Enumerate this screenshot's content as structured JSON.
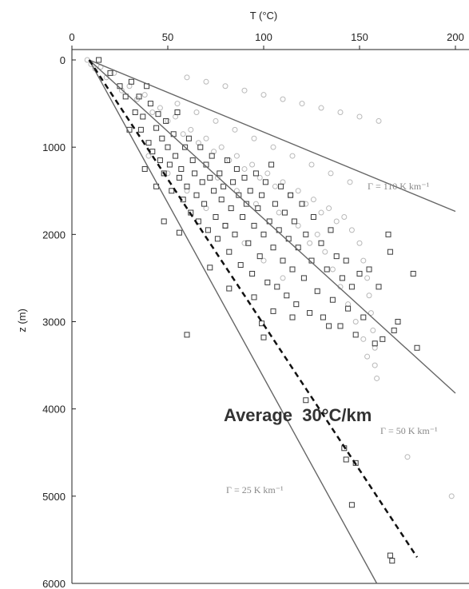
{
  "chart_data": {
    "type": "scatter",
    "title": "",
    "xlabel": "T (°C)",
    "ylabel": "z (m)",
    "x_axis_position": "top",
    "y_axis_inverted": true,
    "xlim": [
      0,
      200
    ],
    "ylim": [
      0,
      6000
    ],
    "xticks": [
      "0",
      "50",
      "100",
      "150",
      "200"
    ],
    "yticks": [
      "0",
      "1000",
      "2000",
      "3000",
      "4000",
      "5000",
      "6000"
    ],
    "grid": false,
    "legend": "none",
    "colors": {
      "line": "#666666",
      "circle": "#b8b8b8",
      "square": "#3a3a3a",
      "dashed": "#111111"
    },
    "reference_lines": [
      {
        "label": "Γ = 110 K km⁻¹",
        "x": [
          9,
          200
        ],
        "y": [
          0,
          1736
        ]
      },
      {
        "label": "Γ = 50 K km⁻¹",
        "x": [
          9,
          200
        ],
        "y": [
          0,
          3820
        ]
      },
      {
        "label": "Γ = 25 K km⁻¹",
        "x": [
          9,
          159
        ],
        "y": [
          0,
          6000
        ]
      }
    ],
    "average_line": {
      "label": "Average  30°C/km",
      "x": [
        9,
        180
      ],
      "y": [
        0,
        5700
      ],
      "style": "dashed"
    },
    "series": [
      {
        "marker": "square",
        "values": [
          [
            14,
            0
          ],
          [
            20,
            150
          ],
          [
            25,
            300
          ],
          [
            28,
            420
          ],
          [
            31,
            250
          ],
          [
            33,
            600
          ],
          [
            35,
            420
          ],
          [
            36,
            800
          ],
          [
            37,
            650
          ],
          [
            39,
            300
          ],
          [
            40,
            950
          ],
          [
            41,
            500
          ],
          [
            42,
            1050
          ],
          [
            44,
            780
          ],
          [
            45,
            620
          ],
          [
            46,
            1150
          ],
          [
            47,
            900
          ],
          [
            48,
            1300
          ],
          [
            49,
            700
          ],
          [
            50,
            1000
          ],
          [
            51,
            1200
          ],
          [
            52,
            1500
          ],
          [
            53,
            850
          ],
          [
            54,
            1100
          ],
          [
            55,
            600
          ],
          [
            56,
            1350
          ],
          [
            57,
            1250
          ],
          [
            58,
            1600
          ],
          [
            59,
            1000
          ],
          [
            60,
            1450
          ],
          [
            61,
            900
          ],
          [
            62,
            1750
          ],
          [
            63,
            1150
          ],
          [
            64,
            1300
          ],
          [
            65,
            1550
          ],
          [
            66,
            1850
          ],
          [
            67,
            1000
          ],
          [
            68,
            1400
          ],
          [
            69,
            1650
          ],
          [
            70,
            1200
          ],
          [
            71,
            1950
          ],
          [
            72,
            1350
          ],
          [
            73,
            1100
          ],
          [
            74,
            1500
          ],
          [
            75,
            1800
          ],
          [
            76,
            2050
          ],
          [
            77,
            1300
          ],
          [
            78,
            1600
          ],
          [
            79,
            1450
          ],
          [
            80,
            1900
          ],
          [
            81,
            1150
          ],
          [
            82,
            2200
          ],
          [
            83,
            1700
          ],
          [
            84,
            1400
          ],
          [
            85,
            2000
          ],
          [
            86,
            1250
          ],
          [
            87,
            1550
          ],
          [
            88,
            2350
          ],
          [
            89,
            1800
          ],
          [
            90,
            1350
          ],
          [
            91,
            1650
          ],
          [
            92,
            2100
          ],
          [
            93,
            1500
          ],
          [
            94,
            2450
          ],
          [
            95,
            1900
          ],
          [
            96,
            1300
          ],
          [
            97,
            1700
          ],
          [
            98,
            2250
          ],
          [
            99,
            1550
          ],
          [
            100,
            2000
          ],
          [
            101,
            1400
          ],
          [
            102,
            2550
          ],
          [
            103,
            1850
          ],
          [
            104,
            1200
          ],
          [
            105,
            2150
          ],
          [
            106,
            1650
          ],
          [
            107,
            2600
          ],
          [
            108,
            1950
          ],
          [
            109,
            1450
          ],
          [
            110,
            2300
          ],
          [
            111,
            1750
          ],
          [
            112,
            2700
          ],
          [
            113,
            2050
          ],
          [
            114,
            1550
          ],
          [
            115,
            2400
          ],
          [
            116,
            1850
          ],
          [
            117,
            2800
          ],
          [
            118,
            2150
          ],
          [
            120,
            1650
          ],
          [
            121,
            2500
          ],
          [
            122,
            2000
          ],
          [
            124,
            2900
          ],
          [
            125,
            2300
          ],
          [
            126,
            1800
          ],
          [
            128,
            2650
          ],
          [
            130,
            2100
          ],
          [
            131,
            2950
          ],
          [
            133,
            2400
          ],
          [
            135,
            1950
          ],
          [
            136,
            2750
          ],
          [
            138,
            2250
          ],
          [
            140,
            3050
          ],
          [
            141,
            2500
          ],
          [
            143,
            2300
          ],
          [
            144,
            2850
          ],
          [
            146,
            2600
          ],
          [
            148,
            3150
          ],
          [
            150,
            2450
          ],
          [
            152,
            2950
          ],
          [
            155,
            2400
          ],
          [
            158,
            3250
          ],
          [
            160,
            2600
          ],
          [
            162,
            3200
          ],
          [
            165,
            2000
          ],
          [
            166,
            2200
          ],
          [
            168,
            3100
          ],
          [
            170,
            3000
          ],
          [
            178,
            2450
          ],
          [
            180,
            3300
          ],
          [
            38,
            1250
          ],
          [
            48,
            1850
          ],
          [
            30,
            800
          ],
          [
            44,
            1450
          ],
          [
            56,
            1980
          ],
          [
            72,
            2380
          ],
          [
            82,
            2620
          ],
          [
            95,
            2720
          ],
          [
            105,
            2880
          ],
          [
            115,
            2950
          ],
          [
            99,
            3020
          ],
          [
            100,
            3180
          ],
          [
            60,
            3150
          ],
          [
            134,
            3050
          ],
          [
            122,
            3900
          ],
          [
            142,
            4450
          ],
          [
            143,
            4580
          ],
          [
            148,
            4620
          ],
          [
            146,
            5100
          ],
          [
            166,
            5680
          ],
          [
            167,
            5740
          ]
        ]
      },
      {
        "marker": "circle",
        "values": [
          [
            8,
            0
          ],
          [
            10,
            50
          ],
          [
            12,
            100
          ],
          [
            15,
            80
          ],
          [
            18,
            200
          ],
          [
            22,
            150
          ],
          [
            26,
            350
          ],
          [
            30,
            300
          ],
          [
            34,
            450
          ],
          [
            38,
            400
          ],
          [
            42,
            600
          ],
          [
            46,
            550
          ],
          [
            50,
            700
          ],
          [
            54,
            650
          ],
          [
            58,
            850
          ],
          [
            62,
            800
          ],
          [
            66,
            950
          ],
          [
            70,
            900
          ],
          [
            74,
            1050
          ],
          [
            78,
            1000
          ],
          [
            82,
            1150
          ],
          [
            86,
            1100
          ],
          [
            90,
            1250
          ],
          [
            94,
            1200
          ],
          [
            98,
            1350
          ],
          [
            102,
            1300
          ],
          [
            106,
            1450
          ],
          [
            110,
            1400
          ],
          [
            114,
            1550
          ],
          [
            118,
            1500
          ],
          [
            122,
            1650
          ],
          [
            126,
            1600
          ],
          [
            130,
            1750
          ],
          [
            134,
            1700
          ],
          [
            138,
            1850
          ],
          [
            142,
            1800
          ],
          [
            146,
            1950
          ],
          [
            150,
            2100
          ],
          [
            152,
            2300
          ],
          [
            154,
            2500
          ],
          [
            155,
            2700
          ],
          [
            156,
            2900
          ],
          [
            157,
            3100
          ],
          [
            158,
            3300
          ],
          [
            158,
            3500
          ],
          [
            159,
            3650
          ],
          [
            60,
            200
          ],
          [
            70,
            250
          ],
          [
            80,
            300
          ],
          [
            90,
            350
          ],
          [
            100,
            400
          ],
          [
            110,
            450
          ],
          [
            120,
            500
          ],
          [
            130,
            550
          ],
          [
            140,
            600
          ],
          [
            150,
            650
          ],
          [
            160,
            700
          ],
          [
            55,
            500
          ],
          [
            65,
            600
          ],
          [
            75,
            700
          ],
          [
            85,
            800
          ],
          [
            95,
            900
          ],
          [
            105,
            1000
          ],
          [
            115,
            1100
          ],
          [
            125,
            1200
          ],
          [
            135,
            1300
          ],
          [
            145,
            1400
          ],
          [
            128,
            2000
          ],
          [
            132,
            2200
          ],
          [
            136,
            2400
          ],
          [
            140,
            2600
          ],
          [
            144,
            2800
          ],
          [
            148,
            3000
          ],
          [
            152,
            3200
          ],
          [
            154,
            3400
          ],
          [
            40,
            1100
          ],
          [
            50,
            1300
          ],
          [
            60,
            1500
          ],
          [
            70,
            1700
          ],
          [
            80,
            1900
          ],
          [
            90,
            2100
          ],
          [
            100,
            2300
          ],
          [
            110,
            2500
          ],
          [
            175,
            4550
          ],
          [
            198,
            5000
          ],
          [
            118,
            1900
          ],
          [
            124,
            2100
          ],
          [
            108,
            1750
          ],
          [
            96,
            1650
          ],
          [
            86,
            1500
          ],
          [
            76,
            1350
          ]
        ]
      }
    ]
  }
}
